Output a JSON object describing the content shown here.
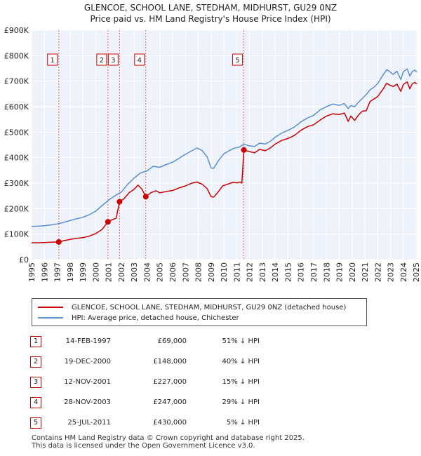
{
  "header": {
    "title": "GLENCOE, SCHOOL LANE, STEDHAM, MIDHURST, GU29 0NZ",
    "subtitle": "Price paid vs. HM Land Registry's House Price Index (HPI)"
  },
  "chart_data": {
    "type": "line",
    "xlim": [
      1995,
      2025.1
    ],
    "ylim": [
      0,
      900000
    ],
    "x_ticks": [
      "1995",
      "1996",
      "1997",
      "1998",
      "1999",
      "2000",
      "2001",
      "2002",
      "2003",
      "2004",
      "2005",
      "2006",
      "2007",
      "2008",
      "2009",
      "2010",
      "2011",
      "2012",
      "2013",
      "2014",
      "2015",
      "2016",
      "2017",
      "2018",
      "2019",
      "2020",
      "2021",
      "2022",
      "2023",
      "2024",
      "2025"
    ],
    "y_ticks": [
      {
        "value": 0,
        "label": "£0"
      },
      {
        "value": 100000,
        "label": "£100K"
      },
      {
        "value": 200000,
        "label": "£200K"
      },
      {
        "value": 300000,
        "label": "£300K"
      },
      {
        "value": 400000,
        "label": "£400K"
      },
      {
        "value": 500000,
        "label": "£500K"
      },
      {
        "value": 600000,
        "label": "£600K"
      },
      {
        "value": 700000,
        "label": "£700K"
      },
      {
        "value": 800000,
        "label": "£800K"
      },
      {
        "value": 900000,
        "label": "£900K"
      }
    ],
    "grid": true,
    "legend_position": "below",
    "series": [
      {
        "name": "GLENCOE, SCHOOL LANE, STEDHAM, MIDHURST, GU29 0NZ (detached house)",
        "color": "#cc0000",
        "points": [
          [
            1995,
            66000
          ],
          [
            1995.5,
            66000
          ],
          [
            1996,
            67000
          ],
          [
            1996.5,
            68000
          ],
          [
            1997.12,
            69000
          ],
          [
            1997.5,
            74000
          ],
          [
            1998,
            79000
          ],
          [
            1998.5,
            83000
          ],
          [
            1999,
            86000
          ],
          [
            1999.5,
            92000
          ],
          [
            2000,
            102000
          ],
          [
            2000.5,
            118000
          ],
          [
            2000.96,
            148000
          ],
          [
            2001.3,
            157000
          ],
          [
            2001.6,
            162000
          ],
          [
            2001.86,
            227000
          ],
          [
            2002.2,
            238000
          ],
          [
            2002.6,
            262000
          ],
          [
            2003,
            276000
          ],
          [
            2003.3,
            292000
          ],
          [
            2003.6,
            277000
          ],
          [
            2003.91,
            247000
          ],
          [
            2004.3,
            262000
          ],
          [
            2004.7,
            270000
          ],
          [
            2005,
            262000
          ],
          [
            2005.5,
            267000
          ],
          [
            2006,
            271000
          ],
          [
            2006.5,
            281000
          ],
          [
            2007,
            289000
          ],
          [
            2007.5,
            300000
          ],
          [
            2007.9,
            304000
          ],
          [
            2008.3,
            296000
          ],
          [
            2008.7,
            278000
          ],
          [
            2009.0,
            247000
          ],
          [
            2009.2,
            245000
          ],
          [
            2009.5,
            262000
          ],
          [
            2009.9,
            289000
          ],
          [
            2010.3,
            296000
          ],
          [
            2010.7,
            303000
          ],
          [
            2011.0,
            301000
          ],
          [
            2011.3,
            304000
          ],
          [
            2011.4,
            300000
          ],
          [
            2011.56,
            430000
          ],
          [
            2011.9,
            425000
          ],
          [
            2012.4,
            419000
          ],
          [
            2012.8,
            433000
          ],
          [
            2013.2,
            427000
          ],
          [
            2013.6,
            437000
          ],
          [
            2014,
            453000
          ],
          [
            2014.5,
            467000
          ],
          [
            2015,
            475000
          ],
          [
            2015.5,
            487000
          ],
          [
            2016,
            507000
          ],
          [
            2016.5,
            521000
          ],
          [
            2017,
            529000
          ],
          [
            2017.5,
            547000
          ],
          [
            2018,
            563000
          ],
          [
            2018.5,
            572000
          ],
          [
            2019,
            569000
          ],
          [
            2019.4,
            575000
          ],
          [
            2019.7,
            542000
          ],
          [
            2019.9,
            563000
          ],
          [
            2020.2,
            546000
          ],
          [
            2020.5,
            567000
          ],
          [
            2020.8,
            582000
          ],
          [
            2021.1,
            584000
          ],
          [
            2021.4,
            620000
          ],
          [
            2021.7,
            630000
          ],
          [
            2022,
            640000
          ],
          [
            2022.4,
            668000
          ],
          [
            2022.7,
            692000
          ],
          [
            2022.9,
            685000
          ],
          [
            2023.2,
            679000
          ],
          [
            2023.5,
            688000
          ],
          [
            2023.8,
            660000
          ],
          [
            2024.0,
            687000
          ],
          [
            2024.3,
            697000
          ],
          [
            2024.5,
            670000
          ],
          [
            2024.7,
            690000
          ],
          [
            2024.9,
            695000
          ],
          [
            2025.05,
            688000
          ]
        ]
      },
      {
        "name": "HPI: Average price, detached house, Chichester",
        "color": "#5b8fd4",
        "points": [
          [
            1995,
            130000
          ],
          [
            1995.5,
            131000
          ],
          [
            1996,
            133000
          ],
          [
            1996.5,
            136000
          ],
          [
            1997,
            140000
          ],
          [
            1997.5,
            146000
          ],
          [
            1998,
            153000
          ],
          [
            1998.5,
            160000
          ],
          [
            1999,
            166000
          ],
          [
            1999.5,
            176000
          ],
          [
            2000,
            190000
          ],
          [
            2000.5,
            212000
          ],
          [
            2001,
            233000
          ],
          [
            2001.5,
            250000
          ],
          [
            2002,
            265000
          ],
          [
            2002.5,
            295000
          ],
          [
            2003,
            320000
          ],
          [
            2003.5,
            340000
          ],
          [
            2004,
            348000
          ],
          [
            2004.5,
            366000
          ],
          [
            2005,
            362000
          ],
          [
            2005.5,
            373000
          ],
          [
            2006,
            382000
          ],
          [
            2006.5,
            397000
          ],
          [
            2007,
            413000
          ],
          [
            2007.5,
            427000
          ],
          [
            2007.9,
            438000
          ],
          [
            2008.3,
            428000
          ],
          [
            2008.7,
            403000
          ],
          [
            2009.0,
            359000
          ],
          [
            2009.2,
            358000
          ],
          [
            2009.6,
            390000
          ],
          [
            2010,
            415000
          ],
          [
            2010.4,
            427000
          ],
          [
            2010.8,
            437000
          ],
          [
            2011.2,
            441000
          ],
          [
            2011.56,
            453000
          ],
          [
            2011.9,
            447000
          ],
          [
            2012.4,
            444000
          ],
          [
            2012.8,
            457000
          ],
          [
            2013.2,
            453000
          ],
          [
            2013.6,
            463000
          ],
          [
            2014,
            480000
          ],
          [
            2014.5,
            496000
          ],
          [
            2015,
            507000
          ],
          [
            2015.5,
            520000
          ],
          [
            2016,
            540000
          ],
          [
            2016.5,
            555000
          ],
          [
            2017,
            566000
          ],
          [
            2017.5,
            587000
          ],
          [
            2018,
            600000
          ],
          [
            2018.5,
            610000
          ],
          [
            2019,
            605000
          ],
          [
            2019.4,
            612000
          ],
          [
            2019.7,
            592000
          ],
          [
            2019.9,
            604000
          ],
          [
            2020.2,
            600000
          ],
          [
            2020.5,
            617000
          ],
          [
            2020.8,
            632000
          ],
          [
            2021.1,
            647000
          ],
          [
            2021.4,
            666000
          ],
          [
            2021.7,
            676000
          ],
          [
            2022,
            691000
          ],
          [
            2022.4,
            723000
          ],
          [
            2022.7,
            745000
          ],
          [
            2022.9,
            739000
          ],
          [
            2023.2,
            726000
          ],
          [
            2023.5,
            739000
          ],
          [
            2023.8,
            706000
          ],
          [
            2024.0,
            737000
          ],
          [
            2024.3,
            748000
          ],
          [
            2024.5,
            720000
          ],
          [
            2024.7,
            738000
          ],
          [
            2024.9,
            743000
          ],
          [
            2025.05,
            736000
          ]
        ]
      }
    ],
    "transactions": [
      {
        "id": "1",
        "x": 1997.12,
        "y": 69000,
        "date": "14-FEB-1997",
        "price": "£69,000",
        "hpi": "51% ↓ HPI"
      },
      {
        "id": "2",
        "x": 2000.96,
        "y": 148000,
        "date": "19-DEC-2000",
        "price": "£148,000",
        "hpi": "40% ↓ HPI"
      },
      {
        "id": "3",
        "x": 2001.86,
        "y": 227000,
        "date": "12-NOV-2001",
        "price": "£227,000",
        "hpi": "15% ↓ HPI"
      },
      {
        "id": "4",
        "x": 2003.91,
        "y": 247000,
        "date": "28-NOV-2003",
        "price": "£247,000",
        "hpi": "29% ↓ HPI"
      },
      {
        "id": "5",
        "x": 2011.56,
        "y": 430000,
        "date": "25-JUL-2011",
        "price": "£430,000",
        "hpi": "5% ↓ HPI"
      }
    ]
  },
  "legend": {
    "items": [
      {
        "label": "GLENCOE, SCHOOL LANE, STEDHAM, MIDHURST, GU29 0NZ (detached house)",
        "color": "#cc0000"
      },
      {
        "label": "HPI: Average price, detached house, Chichester",
        "color": "#5b8fd4"
      }
    ]
  },
  "footer": {
    "line1": "Contains HM Land Registry data © Crown copyright and database right 2025.",
    "line2": "This data is licensed under the Open Government Licence v3.0."
  }
}
